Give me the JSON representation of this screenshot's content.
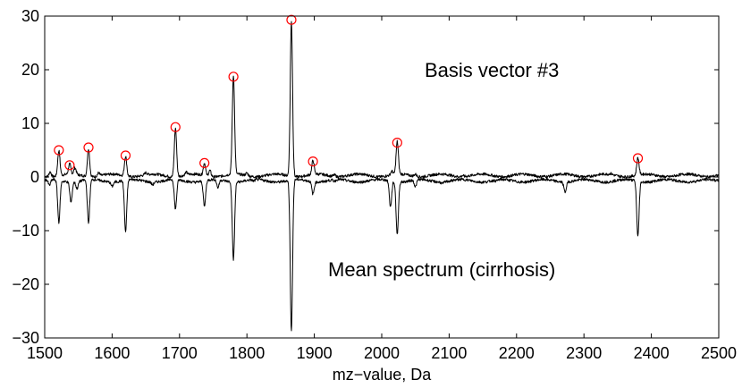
{
  "chart_data": {
    "type": "line",
    "title": "",
    "xlabel": "mz−value, Da",
    "ylabel": "",
    "xlim": [
      1500,
      2500
    ],
    "ylim": [
      -30,
      30
    ],
    "xticks": [
      1500,
      1600,
      1700,
      1800,
      1900,
      2000,
      2100,
      2200,
      2300,
      2400,
      2500
    ],
    "yticks": [
      -30,
      -20,
      -10,
      0,
      10,
      20,
      30
    ],
    "xtick_labels": [
      "1500",
      "1600",
      "1700",
      "1800",
      "1900",
      "2000",
      "2100",
      "2200",
      "2300",
      "2400",
      "2500"
    ],
    "ytick_labels": [
      "−30",
      "−20",
      "−10",
      "0",
      "10",
      "20",
      "30"
    ],
    "annotations": {
      "upper": "Basis vector #3",
      "lower": "Mean spectrum (cirrhosis)"
    },
    "baseline_upper": 0.3,
    "baseline_lower": -0.7,
    "series": [
      {
        "name": "Basis vector #3",
        "color": "#000000",
        "peaks": [
          {
            "x": 1508,
            "y": 1.2
          },
          {
            "x": 1521,
            "y": 5.0
          },
          {
            "x": 1537,
            "y": 2.2
          },
          {
            "x": 1545,
            "y": 1.5
          },
          {
            "x": 1565,
            "y": 5.5
          },
          {
            "x": 1580,
            "y": 0.9
          },
          {
            "x": 1620,
            "y": 4.0
          },
          {
            "x": 1650,
            "y": 0.7
          },
          {
            "x": 1694,
            "y": 9.3
          },
          {
            "x": 1710,
            "y": 0.8
          },
          {
            "x": 1737,
            "y": 2.6
          },
          {
            "x": 1745,
            "y": 1.4
          },
          {
            "x": 1780,
            "y": 18.7
          },
          {
            "x": 1800,
            "y": 0.8
          },
          {
            "x": 1866,
            "y": 29.3
          },
          {
            "x": 1898,
            "y": 2.9
          },
          {
            "x": 1930,
            "y": 0.6
          },
          {
            "x": 2015,
            "y": 1.0
          },
          {
            "x": 2023,
            "y": 6.4
          },
          {
            "x": 2050,
            "y": 0.7
          },
          {
            "x": 2120,
            "y": 0.5
          },
          {
            "x": 2240,
            "y": 0.4
          },
          {
            "x": 2340,
            "y": 0.5
          },
          {
            "x": 2380,
            "y": 3.5
          }
        ]
      },
      {
        "name": "Mean spectrum (cirrhosis)",
        "color": "#000000",
        "peaks": [
          {
            "x": 1507,
            "y": -1.8
          },
          {
            "x": 1521,
            "y": -8.5
          },
          {
            "x": 1539,
            "y": -4.5
          },
          {
            "x": 1548,
            "y": -2.0
          },
          {
            "x": 1565,
            "y": -8.8
          },
          {
            "x": 1600,
            "y": -1.5
          },
          {
            "x": 1620,
            "y": -10.3
          },
          {
            "x": 1660,
            "y": -1.2
          },
          {
            "x": 1694,
            "y": -6.2
          },
          {
            "x": 1737,
            "y": -5.5
          },
          {
            "x": 1757,
            "y": -2.2
          },
          {
            "x": 1780,
            "y": -15.1
          },
          {
            "x": 1810,
            "y": -1.0
          },
          {
            "x": 1866,
            "y": -29.0
          },
          {
            "x": 1898,
            "y": -3.0
          },
          {
            "x": 1930,
            "y": -1.0
          },
          {
            "x": 2013,
            "y": -5.5
          },
          {
            "x": 2023,
            "y": -10.5
          },
          {
            "x": 2050,
            "y": -2.0
          },
          {
            "x": 2090,
            "y": -1.0
          },
          {
            "x": 2170,
            "y": -0.9
          },
          {
            "x": 2272,
            "y": -2.6
          },
          {
            "x": 2380,
            "y": -11.0
          }
        ]
      }
    ],
    "marked_peaks": [
      {
        "x": 1521,
        "y": 5.0
      },
      {
        "x": 1537,
        "y": 2.2
      },
      {
        "x": 1565,
        "y": 5.5
      },
      {
        "x": 1620,
        "y": 4.0
      },
      {
        "x": 1694,
        "y": 9.3
      },
      {
        "x": 1737,
        "y": 2.6
      },
      {
        "x": 1780,
        "y": 18.7
      },
      {
        "x": 1866,
        "y": 29.3
      },
      {
        "x": 1898,
        "y": 2.9
      },
      {
        "x": 2023,
        "y": 6.4
      },
      {
        "x": 2380,
        "y": 3.5
      }
    ],
    "marker_color": "#ff0000"
  }
}
